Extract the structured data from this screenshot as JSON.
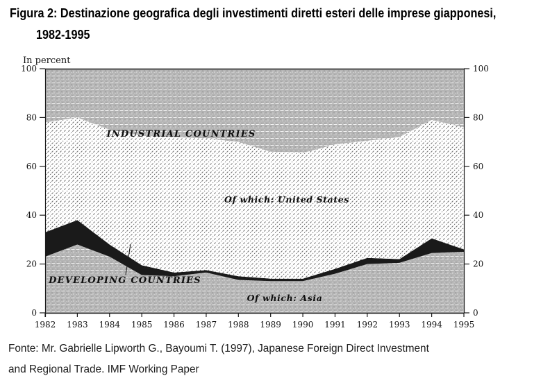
{
  "page": {
    "title_line1": "Figura 2: Destinazione geografica degli investimenti diretti esteri delle imprese giapponesi,",
    "title_line2": "1982-1995",
    "source_line1": "Fonte: Mr. Gabrielle Lipworth G., Bayoumi T. (1997), Japanese Foreign Direct Investment",
    "source_line2": "and Regional Trade. IMF Working Paper"
  },
  "colors": {
    "shade_gray": "#b4b4b4",
    "hatch_stroke": "#6e6e6e",
    "black_area": "#1a1a1a",
    "axis": "#1a1a1a",
    "text": "#111111"
  },
  "chart_data": {
    "type": "area",
    "stacked": true,
    "title": "Destinazione geografica degli investimenti diretti esteri delle imprese giapponesi, 1982-1995",
    "ylabel": "In percent",
    "xlabel": "",
    "ylim": [
      0,
      100
    ],
    "yticks": [
      0,
      20,
      40,
      60,
      80,
      100
    ],
    "grid": "faint white dotted horizontal banding inside shaded areas",
    "legend_position": "labels printed inside areas",
    "years": [
      1982,
      1983,
      1984,
      1985,
      1986,
      1987,
      1988,
      1989,
      1990,
      1991,
      1992,
      1993,
      1994,
      1995
    ],
    "area_labels": {
      "industrial": "INDUSTRIAL COUNTRIES",
      "us": "Of which: United States",
      "developing": "DEVELOPING COUNTRIES",
      "asia": "Of which: Asia"
    },
    "series": [
      {
        "name": "Developing countries — of which: Asia",
        "fill": "gray-halftone",
        "top_boundary": [
          23,
          28,
          23,
          15.5,
          15,
          16.5,
          13.5,
          13,
          13,
          16,
          20,
          20.5,
          24.5,
          25
        ]
      },
      {
        "name": "Developing countries (total)",
        "fill": "black",
        "top_boundary": [
          33,
          38,
          28,
          19.5,
          16.5,
          17.5,
          15,
          14,
          14,
          18,
          22.5,
          22,
          30.5,
          26
        ]
      },
      {
        "name": "Industrial countries — of which: United States",
        "fill": "diagonal-hatch",
        "top_boundary": [
          78,
          80,
          75,
          72.5,
          72,
          71.5,
          70,
          66,
          65.5,
          69,
          70.5,
          72,
          79,
          76
        ]
      },
      {
        "name": "Industrial countries (total)",
        "fill": "gray-halftone",
        "top_boundary": [
          100,
          100,
          100,
          100,
          100,
          100,
          100,
          100,
          100,
          100,
          100,
          100,
          100,
          100
        ]
      }
    ]
  }
}
